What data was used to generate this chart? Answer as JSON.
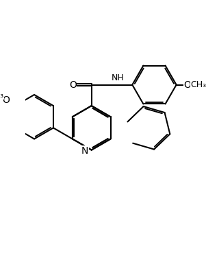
{
  "bg_color": "#ffffff",
  "line_color": "#000000",
  "lw": 1.5,
  "fs": 9,
  "figsize": [
    3.2,
    3.92
  ],
  "dpi": 100,
  "xlim": [
    1.0,
    9.5
  ],
  "ylim": [
    0.5,
    12.5
  ]
}
